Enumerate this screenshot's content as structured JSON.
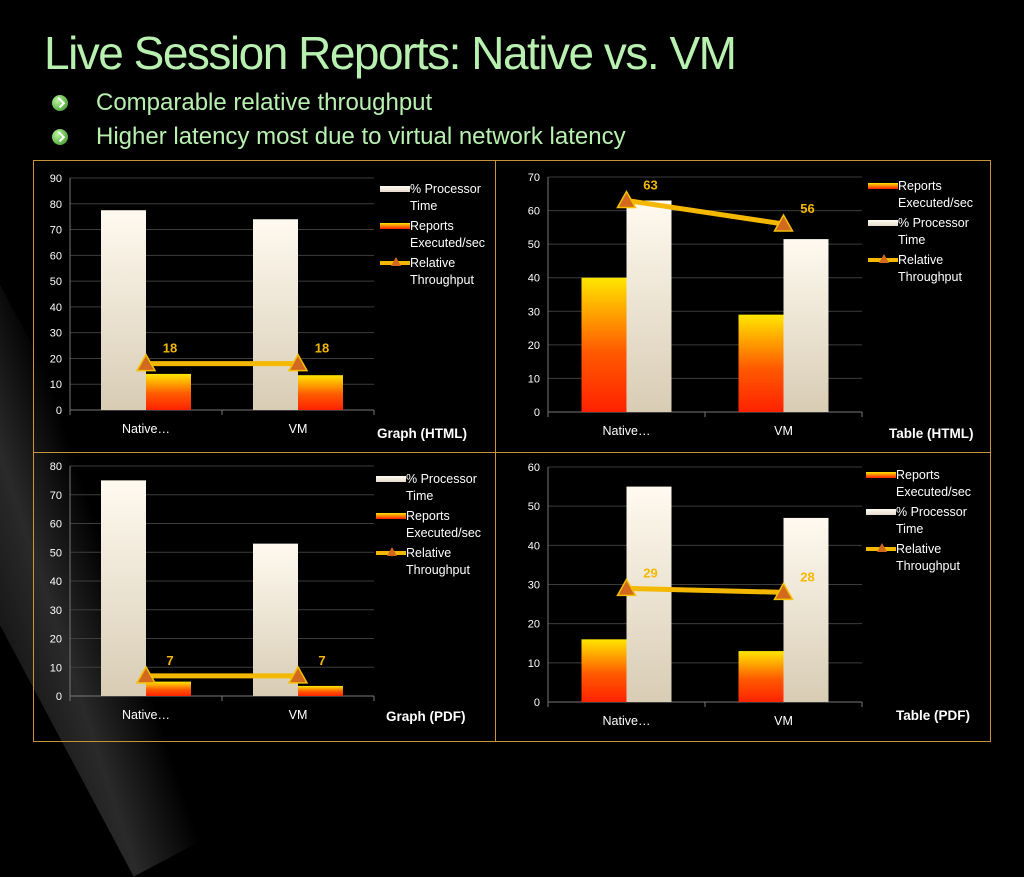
{
  "slide": {
    "title": "Live Session Reports: Native vs. VM",
    "bullets": [
      "Comparable relative throughput",
      "Higher latency most due to virtual network latency"
    ]
  },
  "colors": {
    "title_text": "#b8f0b0",
    "frame": "#c9933a",
    "throughput_line": "#f5b800",
    "throughput_marker": "#d2691e",
    "reports_bar_top": "#ffe600",
    "reports_bar_bottom": "#ff2200",
    "processor_bar_top": "#fffaf0",
    "processor_bar_bottom": "#d8ccb4"
  },
  "chart_data": [
    {
      "type": "bar",
      "title": "Graph (HTML)",
      "categories": [
        "Native…",
        "VM"
      ],
      "ylim": [
        0,
        90
      ],
      "yticks": [
        0,
        10,
        20,
        30,
        40,
        50,
        60,
        70,
        80,
        90
      ],
      "grid": true,
      "legend_position": "right",
      "series": [
        {
          "name": "% Processor Time",
          "kind": "bar",
          "style": "processor",
          "values": [
            77.5,
            74
          ]
        },
        {
          "name": "Reports Executed/sec",
          "kind": "bar",
          "style": "reports",
          "values": [
            14,
            13.5
          ]
        },
        {
          "name": "Relative Throughput",
          "kind": "line",
          "values": [
            18,
            18
          ],
          "data_labels": [
            "18",
            "18"
          ]
        }
      ]
    },
    {
      "type": "bar",
      "title": "Table (HTML)",
      "categories": [
        "Native…",
        "VM"
      ],
      "ylim": [
        0,
        70
      ],
      "yticks": [
        0,
        10,
        20,
        30,
        40,
        50,
        60,
        70
      ],
      "grid": true,
      "legend_position": "right",
      "series": [
        {
          "name": "Reports Executed/sec",
          "kind": "bar",
          "style": "reports",
          "values": [
            40,
            29
          ]
        },
        {
          "name": "% Processor Time",
          "kind": "bar",
          "style": "processor",
          "values": [
            63,
            51.5
          ]
        },
        {
          "name": "Relative Throughput",
          "kind": "line",
          "values": [
            63,
            56
          ],
          "data_labels": [
            "63",
            "56"
          ]
        }
      ]
    },
    {
      "type": "bar",
      "title": "Graph (PDF)",
      "categories": [
        "Native…",
        "VM"
      ],
      "ylim": [
        0,
        80
      ],
      "yticks": [
        0,
        10,
        20,
        30,
        40,
        50,
        60,
        70,
        80
      ],
      "grid": true,
      "legend_position": "right",
      "series": [
        {
          "name": "% Processor Time",
          "kind": "bar",
          "style": "processor",
          "values": [
            75,
            53
          ]
        },
        {
          "name": "Reports Executed/sec",
          "kind": "bar",
          "style": "reports",
          "values": [
            5,
            3.5
          ]
        },
        {
          "name": "Relative Throughput",
          "kind": "line",
          "values": [
            7,
            7
          ],
          "data_labels": [
            "7",
            "7"
          ]
        }
      ]
    },
    {
      "type": "bar",
      "title": "Table (PDF)",
      "categories": [
        "Native…",
        "VM"
      ],
      "ylim": [
        0,
        60
      ],
      "yticks": [
        0,
        10,
        20,
        30,
        40,
        50,
        60
      ],
      "grid": true,
      "legend_position": "right",
      "series": [
        {
          "name": "Reports Executed/sec",
          "kind": "bar",
          "style": "reports",
          "values": [
            16,
            13
          ]
        },
        {
          "name": "% Processor Time",
          "kind": "bar",
          "style": "processor",
          "values": [
            55,
            47
          ]
        },
        {
          "name": "Relative Throughput",
          "kind": "line",
          "values": [
            29,
            28
          ],
          "data_labels": [
            "29",
            "28"
          ]
        }
      ]
    }
  ]
}
